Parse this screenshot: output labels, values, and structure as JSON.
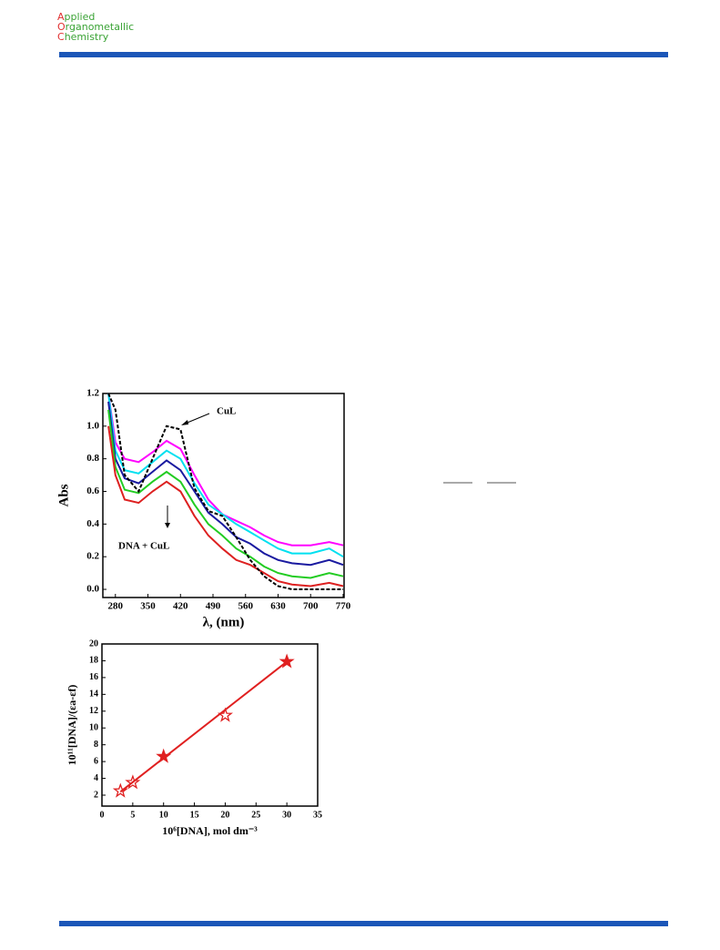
{
  "header": {
    "journal": [
      "Applied",
      "Organometallic",
      "Chemistry"
    ]
  },
  "chart_data": [
    {
      "type": "line",
      "x": [
        265,
        280,
        300,
        330,
        360,
        390,
        420,
        450,
        480,
        510,
        540,
        570,
        600,
        630,
        660,
        700,
        740,
        770
      ],
      "series": [
        {
          "color": "#ff00ff",
          "values": [
            1.2,
            0.9,
            0.8,
            0.78,
            0.84,
            0.91,
            0.86,
            0.7,
            0.55,
            0.46,
            0.42,
            0.38,
            0.33,
            0.29,
            0.27,
            0.27,
            0.29,
            0.27
          ]
        },
        {
          "color": "#00e0f0",
          "values": [
            1.2,
            0.85,
            0.73,
            0.71,
            0.78,
            0.85,
            0.8,
            0.65,
            0.52,
            0.46,
            0.4,
            0.35,
            0.3,
            0.25,
            0.22,
            0.22,
            0.25,
            0.2
          ]
        },
        {
          "color": "#1a1aa0",
          "values": [
            1.15,
            0.8,
            0.68,
            0.65,
            0.72,
            0.79,
            0.73,
            0.6,
            0.47,
            0.4,
            0.32,
            0.28,
            0.22,
            0.18,
            0.16,
            0.15,
            0.18,
            0.15
          ]
        },
        {
          "color": "#22cc22",
          "values": [
            1.1,
            0.75,
            0.61,
            0.59,
            0.66,
            0.72,
            0.66,
            0.52,
            0.4,
            0.33,
            0.25,
            0.2,
            0.14,
            0.1,
            0.08,
            0.07,
            0.1,
            0.08
          ]
        },
        {
          "color": "#dd2020",
          "values": [
            1.0,
            0.7,
            0.55,
            0.53,
            0.6,
            0.66,
            0.6,
            0.45,
            0.33,
            0.25,
            0.18,
            0.15,
            0.1,
            0.05,
            0.03,
            0.02,
            0.04,
            0.02
          ]
        },
        {
          "color": "#000000",
          "style": "dashed",
          "values": [
            1.2,
            1.1,
            0.7,
            0.6,
            0.8,
            1.0,
            0.98,
            0.62,
            0.48,
            0.45,
            0.32,
            0.18,
            0.08,
            0.02,
            0.0,
            0.0,
            0.0,
            0.0
          ]
        }
      ],
      "xlim": [
        253,
        772
      ],
      "xticks": [
        280,
        350,
        420,
        490,
        560,
        630,
        700,
        770
      ],
      "ylim": [
        -0.05,
        1.2
      ],
      "yticks": [
        {
          "value": 0,
          "label": "0.0"
        },
        {
          "value": 0.2,
          "label": "0.2"
        },
        {
          "value": 0.4,
          "label": "0.4"
        },
        {
          "value": 0.6,
          "label": "0.6"
        },
        {
          "value": 0.8,
          "label": "0.8"
        },
        {
          "value": 1,
          "label": "1.0"
        },
        {
          "value": 1.2,
          "label": "1.2"
        }
      ],
      "xlabel": "λ, (nm)",
      "ylabel": "Abs",
      "annotations": [
        "CuL",
        "DNA + CuL"
      ]
    },
    {
      "type": "scatter",
      "x": [
        3,
        5,
        10,
        20,
        30
      ],
      "values": [
        2.5,
        3.5,
        6.6,
        11.5,
        17.9
      ],
      "marker_filled": [
        false,
        false,
        true,
        false,
        true
      ],
      "color": "#e02020",
      "fit": {
        "x": [
          3,
          30
        ],
        "values": [
          2.4,
          17.9
        ]
      },
      "xlim": [
        0,
        35
      ],
      "xticks": [
        0,
        5,
        10,
        15,
        20,
        25,
        30,
        35
      ],
      "ylim": [
        0.7,
        20
      ],
      "yticks": [
        2,
        4,
        6,
        8,
        10,
        12,
        14,
        16,
        18,
        20
      ],
      "xlabel": "10⁶[DNA], mol dm⁻³",
      "ylabel": "10¹¹[DNA]/(εa-εf)"
    }
  ]
}
